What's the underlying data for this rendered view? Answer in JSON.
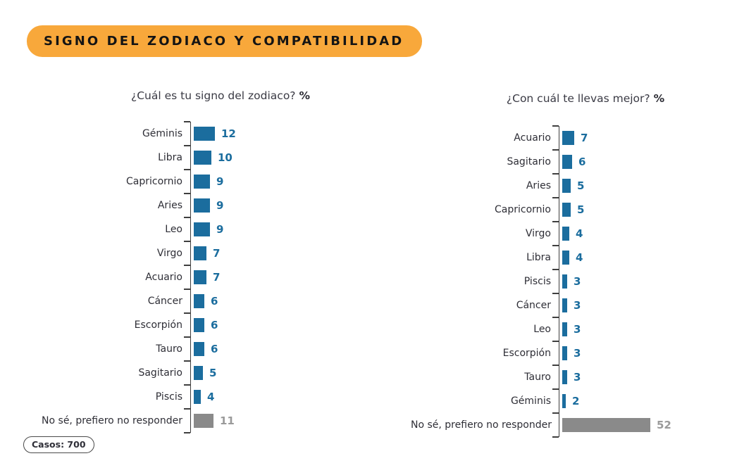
{
  "header": {
    "title": "SIGNO DEL ZODIACO Y COMPATIBILIDAD"
  },
  "footer": {
    "cases": "Casos: 700"
  },
  "colors": {
    "accent_orange": "#F8A83B",
    "bar_blue": "#1B6D9E",
    "bar_gray": "#8A8A8A",
    "value_gray": "#9A9A9A",
    "axis": "#3F3F3F"
  },
  "chart_data": [
    {
      "type": "bar",
      "orientation": "horizontal",
      "title": "¿Cuál es tu signo del zodiaco?",
      "unit_label": "%",
      "legend": "none",
      "grid": "off",
      "rows": [
        {
          "label": "Géminis",
          "value": 12,
          "muted": false
        },
        {
          "label": "Libra",
          "value": 10,
          "muted": false
        },
        {
          "label": "Capricornio",
          "value": 9,
          "muted": false
        },
        {
          "label": "Aries",
          "value": 9,
          "muted": false
        },
        {
          "label": "Leo",
          "value": 9,
          "muted": false
        },
        {
          "label": "Virgo",
          "value": 7,
          "muted": false
        },
        {
          "label": "Acuario",
          "value": 7,
          "muted": false
        },
        {
          "label": "Cáncer",
          "value": 6,
          "muted": false
        },
        {
          "label": "Escorpión",
          "value": 6,
          "muted": false
        },
        {
          "label": "Tauro",
          "value": 6,
          "muted": false
        },
        {
          "label": "Sagitario",
          "value": 5,
          "muted": false
        },
        {
          "label": "Piscis",
          "value": 4,
          "muted": false
        },
        {
          "label": "No sé, prefiero no responder",
          "value": 11,
          "muted": true
        }
      ]
    },
    {
      "type": "bar",
      "orientation": "horizontal",
      "title": "¿Con cuál te llevas mejor?",
      "unit_label": "%",
      "legend": "none",
      "grid": "off",
      "rows": [
        {
          "label": "Acuario",
          "value": 7,
          "muted": false
        },
        {
          "label": "Sagitario",
          "value": 6,
          "muted": false
        },
        {
          "label": "Aries",
          "value": 5,
          "muted": false
        },
        {
          "label": "Capricornio",
          "value": 5,
          "muted": false
        },
        {
          "label": "Virgo",
          "value": 4,
          "muted": false
        },
        {
          "label": "Libra",
          "value": 4,
          "muted": false
        },
        {
          "label": "Piscis",
          "value": 3,
          "muted": false
        },
        {
          "label": "Cáncer",
          "value": 3,
          "muted": false
        },
        {
          "label": "Leo",
          "value": 3,
          "muted": false
        },
        {
          "label": "Escorpión",
          "value": 3,
          "muted": false
        },
        {
          "label": "Tauro",
          "value": 3,
          "muted": false
        },
        {
          "label": "Géminis",
          "value": 2,
          "muted": false
        },
        {
          "label": "No sé, prefiero no responder",
          "value": 52,
          "muted": true
        }
      ]
    }
  ]
}
